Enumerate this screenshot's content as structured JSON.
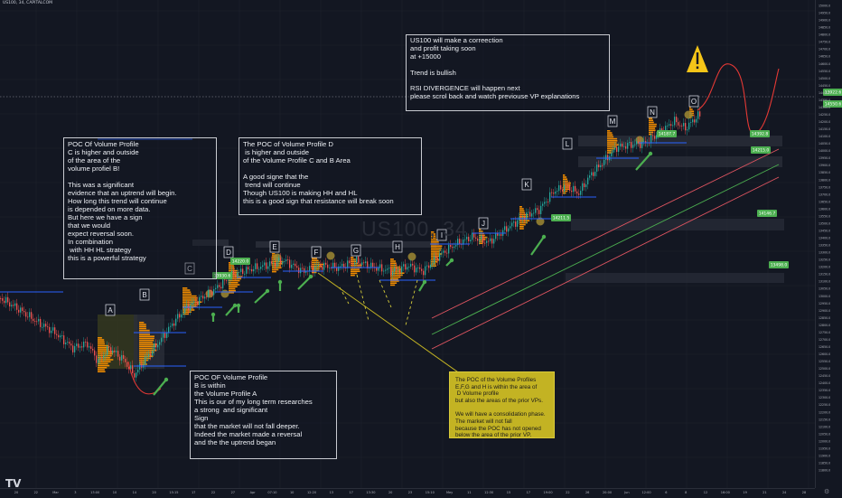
{
  "symbol": "US100, 34, CAPITALCOM",
  "watermark": "US100, 34",
  "logo": "TV",
  "colors": {
    "background": "#131722",
    "grid": "#1e222d",
    "candle_up": "#26a69a",
    "candle_down": "#ef5350",
    "volume_profile": "#f08c00",
    "poc_dot": "#a08a32",
    "label_box": "#e0e3eb",
    "support_line": "#2962ff",
    "label_green": "#4caf50",
    "warning_yellow": "#f5c518"
  },
  "notes": {
    "top": "US100 will make a correection\nand profit taking soon\nat +15000\n\nTrend is bullish\n\nRSI DIVERGENCE will happen next\nplease scrol back and watch previouse VP explanations",
    "left": "POC Of Volume Profile\nC is higher and outside\nof the area of the\nvolume profiel B!\n\nThis was a significant\nevidence that an uptrend will begin.\nHow long this trend will continue\nis depended on more data.\nBut here we have a sign\nthat we would\nexpect reversal soon.\nIn combination\n with HH HL strategy\nthis is a powerful strategy",
    "middle": "The POC of Volume Profile D\n is higher and outside\nof the Volume Profile C and B Area\n\nA good signe that the\n trend will continue\nThough US100 is making HH and HL\nthis is a good sign that resistance will break soon",
    "bottom": "POC OF Volume Profile\nB is within\nthe Volume Profile A\nThis is our of my long term researches\na strong  and significant\nSign\nthat the market will not fall deeper.\nIndeed the market made a reversal\nand the the uptrend began",
    "yellow": "The POC of the Volume Profiles\nE,F,G and H is within the area of\n D Volume profile\nbut also the areas of the prior VPs.\n\nWe will have a consolidation phase.\nThe market will not fall\nbecause the POC has not opened\nbelow the area of the prior VP."
  },
  "icons": {
    "warning": "warning-triangle-icon",
    "settings": "gear-icon"
  },
  "chart_data": {
    "type": "candlestick",
    "labels": [
      "A",
      "B",
      "C",
      "D",
      "E",
      "F",
      "G",
      "H",
      "I",
      "J",
      "K",
      "L",
      "M",
      "N",
      "O"
    ],
    "price_axis_ticks": [
      "15000.0",
      "14950.0",
      "14900.0",
      "14850.0",
      "14800.0",
      "14750.0",
      "14700.0",
      "14650.0",
      "14600.0",
      "14550.0",
      "14500.0",
      "14450.0",
      "14400.0",
      "14350.0",
      "14300.0",
      "14250.0",
      "14200.0",
      "14150.0",
      "14100.0",
      "14050.0",
      "14000.0",
      "13950.0",
      "13900.0",
      "13850.0",
      "13800.0",
      "13750.0",
      "13700.0",
      "13650.0",
      "13600.0",
      "13550.0",
      "13500.0",
      "13450.0",
      "13400.0",
      "13350.0",
      "13300.0",
      "13250.0",
      "13200.0",
      "13150.0",
      "13100.0",
      "13050.0",
      "13000.0",
      "12950.0",
      "12900.0",
      "12850.0",
      "12800.0",
      "12750.0",
      "12700.0",
      "12650.0",
      "12600.0",
      "12550.0",
      "12500.0",
      "12450.0",
      "12400.0",
      "12350.0",
      "12300.0",
      "12250.0",
      "12200.0",
      "12150.0",
      "12100.0",
      "12050.0",
      "12000.0",
      "11950.0",
      "11900.0",
      "11850.0",
      "11800.0"
    ],
    "time_axis_ticks": [
      "20",
      "22",
      "Mar",
      "3",
      "13:00",
      "10",
      "14",
      "20",
      "15:15",
      "17",
      "22",
      "27",
      "Apr",
      "07:10",
      "10",
      "12:20",
      "13",
      "17",
      "13:30",
      "20",
      "23",
      "15:10",
      "Mey",
      "11",
      "12:30",
      "15",
      "17",
      "19:00",
      "22",
      "26",
      "20:00",
      "Jun",
      "12:00",
      "6",
      "8",
      "12",
      "16:00",
      "19",
      "21",
      "24",
      "28"
    ],
    "price_badges": [
      "13930.6",
      "14220.0",
      "14211.5",
      "14187.7",
      "14392.8",
      "14215.0",
      "14146.7",
      "13498.0",
      "13922.6",
      "14550.6"
    ],
    "price_range": [
      11800,
      15000
    ],
    "grid": true
  }
}
